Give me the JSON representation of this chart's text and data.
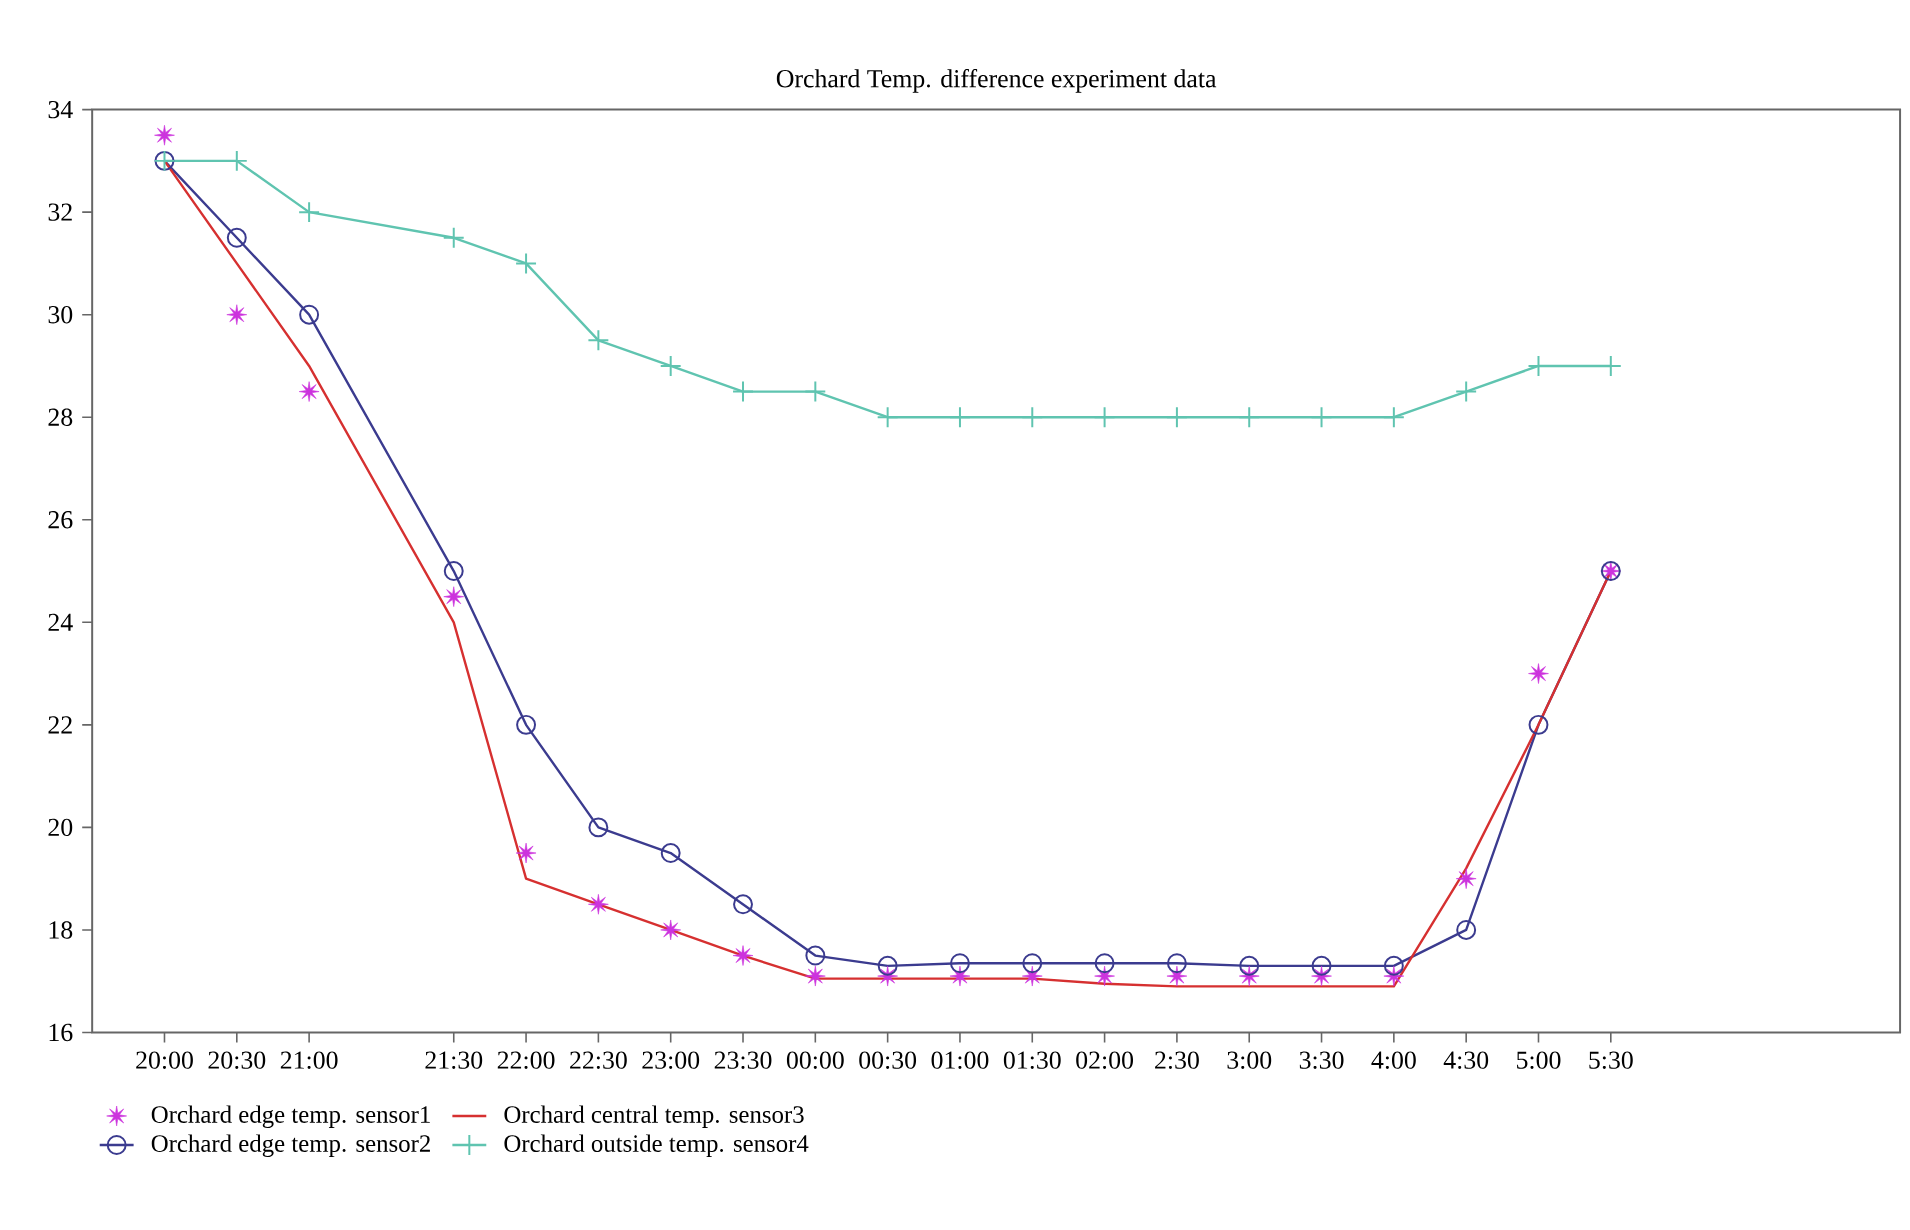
{
  "chart_data": {
    "type": "line",
    "title": "Orchard Temp. difference experiment data",
    "categories": [
      "20:00",
      "20:30",
      "21:00",
      null,
      "21:30",
      "22:00",
      "22:30",
      "23:00",
      "23:30",
      "00:00",
      "00:30",
      "01:00",
      "01:30",
      "02:00",
      "2:30",
      "3:00",
      "3:30",
      "4:00",
      "4:30",
      "5:00",
      "5:30"
    ],
    "series": [
      {
        "name": "Orchard edge temp. sensor1",
        "type": "scatter",
        "marker": "star",
        "color": "#cc33dd",
        "values": [
          33.5,
          30,
          28.5,
          null,
          24.5,
          19.5,
          18.5,
          18,
          17.5,
          17.1,
          17.1,
          17.1,
          17.1,
          17.1,
          17.1,
          17.1,
          17.1,
          17.1,
          19,
          23,
          25
        ]
      },
      {
        "name": "Orchard edge temp. sensor2",
        "marker": "circle",
        "color": "#3b3b8f",
        "values": [
          33,
          31.5,
          30,
          null,
          25,
          22,
          20,
          19.5,
          18.5,
          17.5,
          17.3,
          17.35,
          17.35,
          17.35,
          17.35,
          17.3,
          17.3,
          17.3,
          18,
          22,
          25
        ]
      },
      {
        "name": "Orchard central temp. sensor3",
        "marker": "none",
        "color": "#d63030",
        "values": [
          33,
          31,
          29,
          null,
          24,
          19,
          18.5,
          18,
          17.5,
          17.05,
          17.05,
          17.05,
          17.05,
          16.95,
          16.9,
          16.9,
          16.9,
          16.9,
          19.2,
          22,
          25
        ]
      },
      {
        "name": "Orchard outside temp. sensor4",
        "marker": "cross",
        "color": "#5fc4b0",
        "values": [
          33,
          33,
          32,
          null,
          31.5,
          31,
          29.5,
          29,
          28.5,
          28.5,
          28,
          28,
          28,
          28,
          28,
          28,
          28,
          28,
          28.5,
          29,
          29
        ]
      }
    ],
    "ylim": [
      16,
      34
    ],
    "yticks": [
      16,
      18,
      20,
      22,
      24,
      26,
      28,
      30,
      32,
      34
    ],
    "legend": "bottom"
  }
}
